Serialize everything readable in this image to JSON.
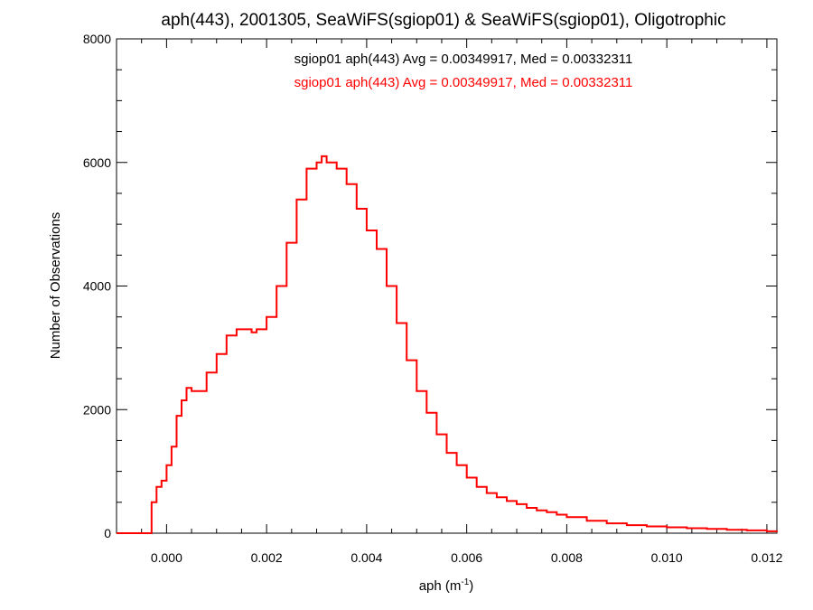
{
  "chart_data": {
    "type": "line",
    "title": "aph(443), 2001305, SeaWiFS(sgiop01) & SeaWiFS(sgiop01), Oligotrophic",
    "xlabel": {
      "base": "aph (m",
      "sup": "-1",
      "close": ")"
    },
    "ylabel": "Number of Observations",
    "xlim": [
      -0.001,
      0.0122
    ],
    "ylim": [
      0,
      8000
    ],
    "x_ticks": [
      {
        "value": 0.0,
        "label": "0.000"
      },
      {
        "value": 0.002,
        "label": "0.002"
      },
      {
        "value": 0.004,
        "label": "0.004"
      },
      {
        "value": 0.006,
        "label": "0.006"
      },
      {
        "value": 0.008,
        "label": "0.008"
      },
      {
        "value": 0.01,
        "label": "0.010"
      },
      {
        "value": 0.012,
        "label": "0.012"
      }
    ],
    "y_ticks": [
      {
        "value": 0,
        "label": "0"
      },
      {
        "value": 2000,
        "label": "2000"
      },
      {
        "value": 4000,
        "label": "4000"
      },
      {
        "value": 6000,
        "label": "6000"
      },
      {
        "value": 8000,
        "label": "8000"
      }
    ],
    "legend": [
      {
        "text": "sgiop01 aph(443) Avg = 0.00349917, Med = 0.00332311",
        "color": "#000000"
      },
      {
        "text": "sgiop01 aph(443) Avg = 0.00349917, Med = 0.00332311",
        "color": "#ff0000"
      }
    ],
    "legend_placement": "top-center",
    "series": [
      {
        "color": "#ff0000",
        "step": true,
        "x": [
          -0.001,
          -0.0004,
          -0.0003,
          -0.0002,
          -0.0001,
          0.0,
          0.0001,
          0.0002,
          0.0003,
          0.0004,
          0.0005,
          0.0006,
          0.0008,
          0.001,
          0.0012,
          0.0014,
          0.0016,
          0.0017,
          0.0018,
          0.002,
          0.0022,
          0.0024,
          0.0026,
          0.0028,
          0.003,
          0.0031,
          0.0032,
          0.0034,
          0.0036,
          0.0038,
          0.004,
          0.0042,
          0.0044,
          0.0046,
          0.0048,
          0.005,
          0.0052,
          0.0054,
          0.0056,
          0.0058,
          0.006,
          0.0062,
          0.0064,
          0.0066,
          0.0068,
          0.007,
          0.0072,
          0.0074,
          0.0076,
          0.0078,
          0.008,
          0.0084,
          0.0088,
          0.0092,
          0.0096,
          0.01,
          0.0104,
          0.0108,
          0.0112,
          0.0116,
          0.012,
          0.0122
        ],
        "y": [
          0,
          0,
          500,
          750,
          850,
          1100,
          1400,
          1900,
          2150,
          2350,
          2300,
          2300,
          2600,
          2900,
          3200,
          3300,
          3300,
          3250,
          3300,
          3500,
          4000,
          4700,
          5400,
          5900,
          6000,
          6100,
          6000,
          5900,
          5650,
          5250,
          4900,
          4600,
          4000,
          3400,
          2800,
          2300,
          1950,
          1600,
          1300,
          1100,
          900,
          750,
          650,
          580,
          520,
          470,
          410,
          370,
          340,
          300,
          260,
          200,
          160,
          130,
          110,
          95,
          80,
          70,
          55,
          45,
          30,
          20
        ]
      }
    ]
  }
}
